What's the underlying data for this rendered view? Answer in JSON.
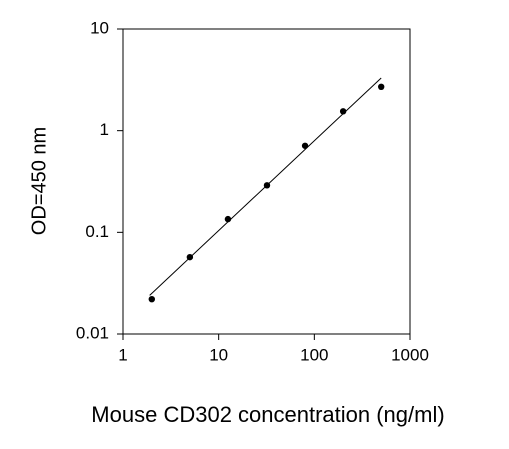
{
  "chart_data": {
    "type": "scatter",
    "x_label": "Mouse CD302 concentration (ng/ml)",
    "y_label": "OD=450 nm",
    "x": [
      2,
      5,
      12.5,
      32,
      80,
      200,
      500
    ],
    "values": [
      0.022,
      0.057,
      0.135,
      0.29,
      0.71,
      1.55,
      2.7
    ],
    "color": "#000000",
    "fit_line": {
      "x": [
        1.9,
        500
      ],
      "y": [
        0.024,
        3.3
      ]
    },
    "xlim": [
      1,
      1000
    ],
    "xticks": [
      1,
      10,
      100,
      1000
    ],
    "ylim": [
      0.01,
      10
    ],
    "yticks": [
      0.01,
      0.1,
      1,
      10
    ],
    "xscale": "log",
    "yscale": "log",
    "grid": false
  }
}
